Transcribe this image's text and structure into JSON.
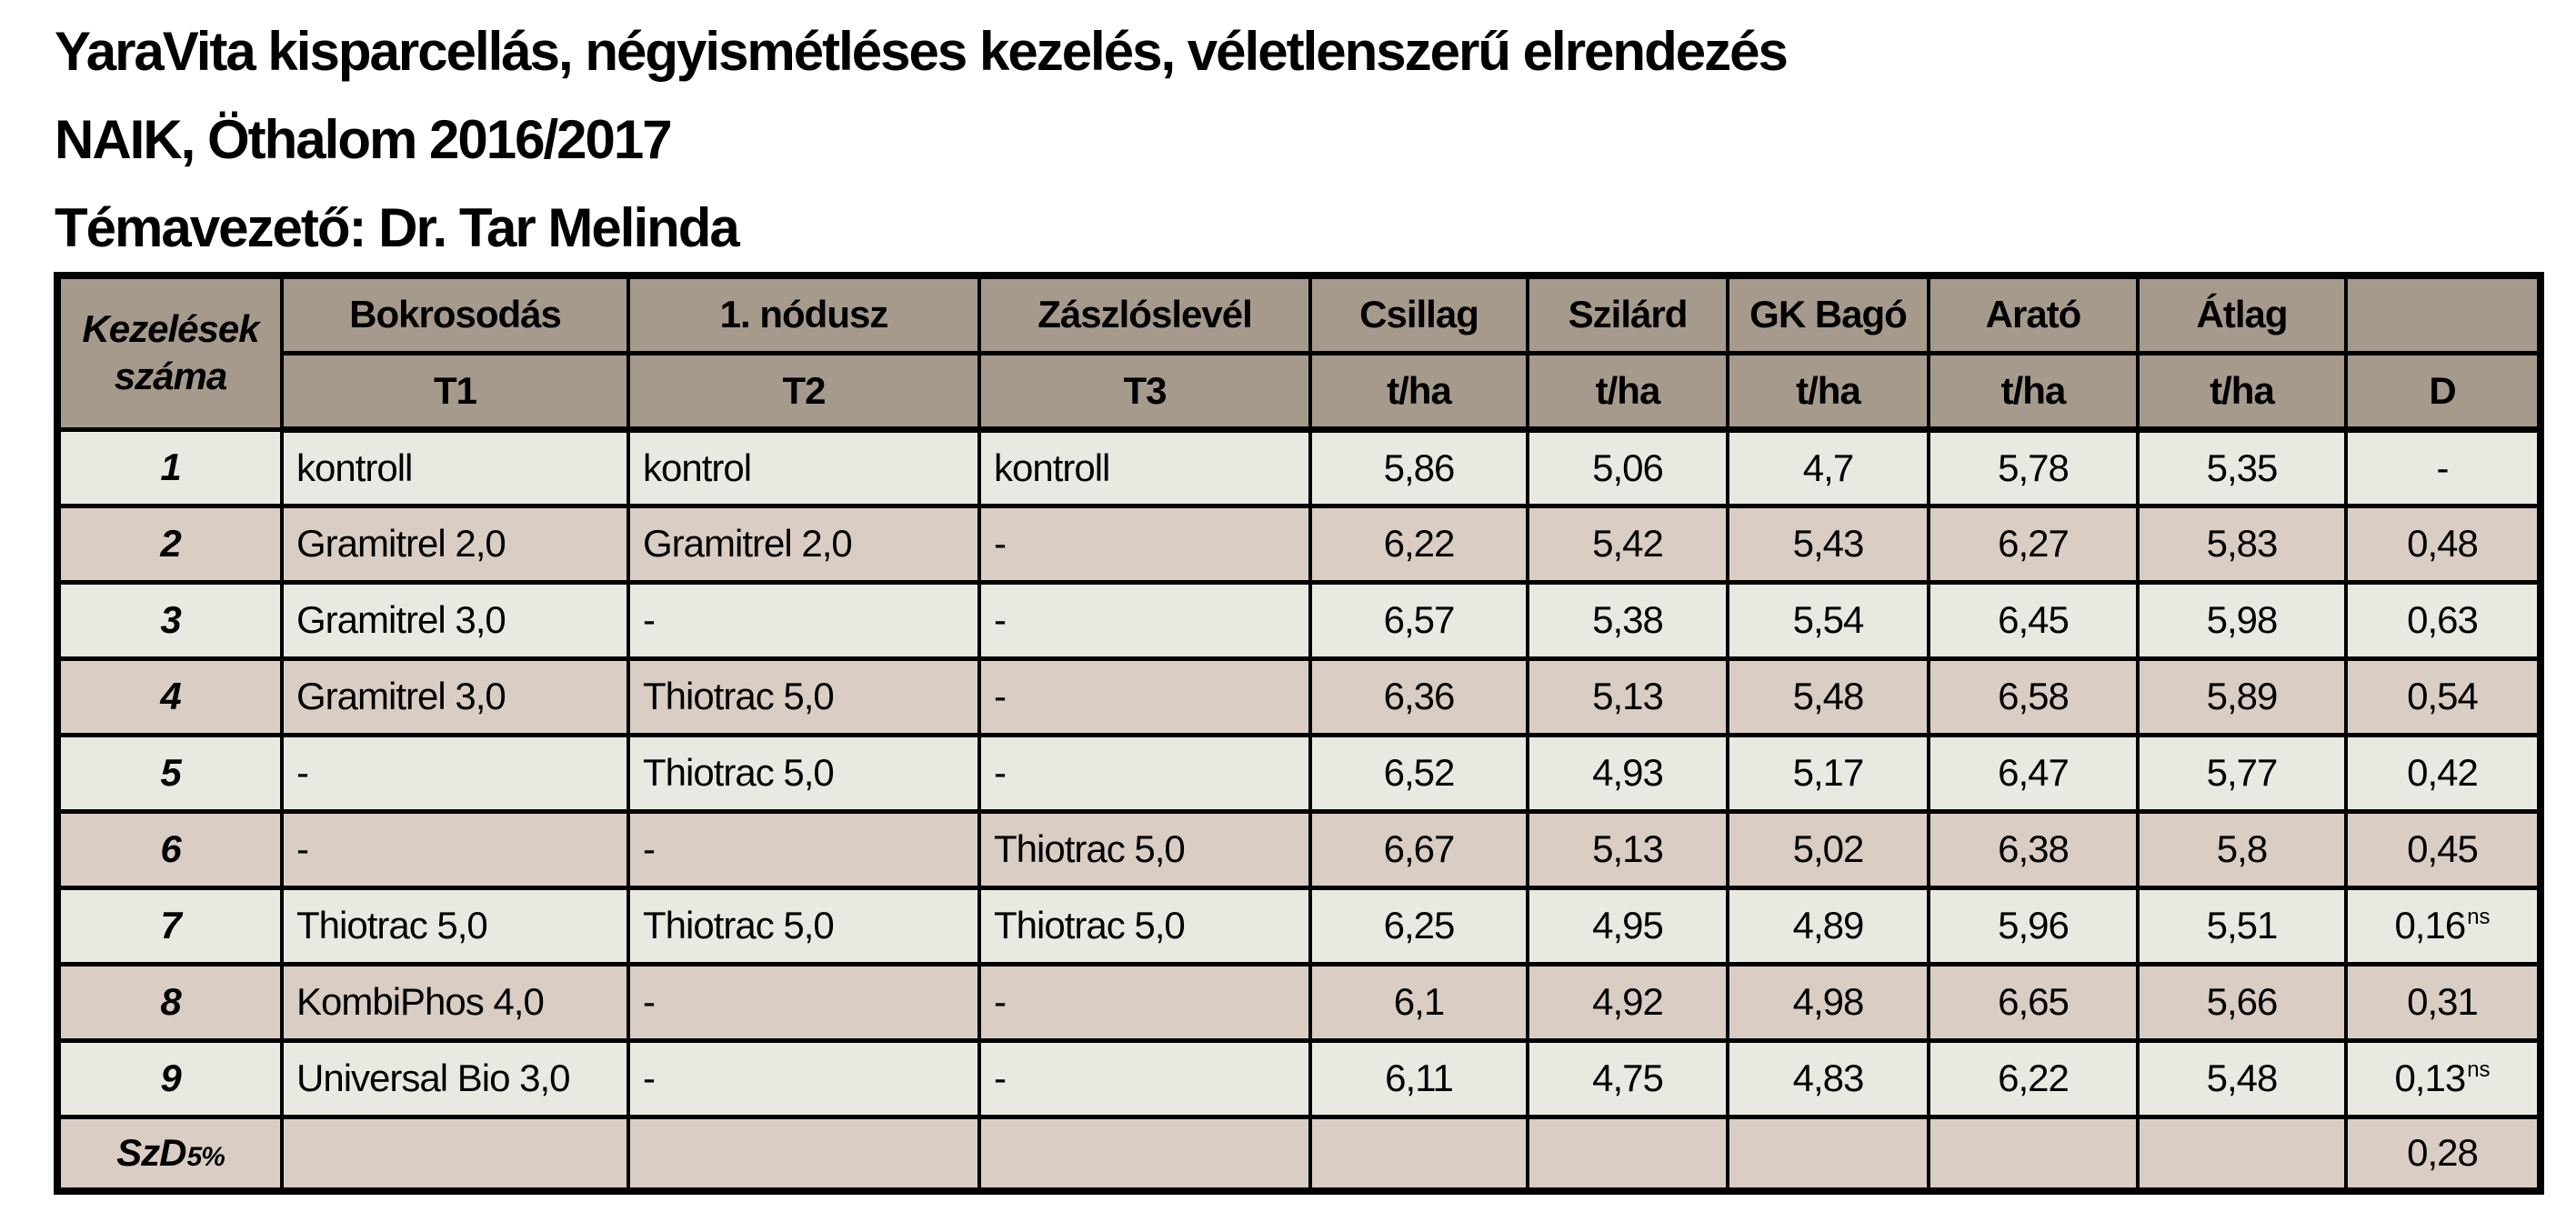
{
  "page": {
    "title_lines": [
      "YaraVita kisparcellás, négyismétléses kezelés, véletlenszerű elrendezés",
      "NAIK, Öthalom 2016/2017",
      "Témavezető: Dr. Tar Melinda"
    ]
  },
  "colors": {
    "header_bg": "#a69a8d",
    "row_light_bg": "#e9e9e1",
    "row_dark_bg": "#d9cdc4",
    "border": "#000000",
    "text": "#000000"
  },
  "table": {
    "corner_header": {
      "line1": "Kezelések",
      "line2": "száma"
    },
    "timing_columns": [
      {
        "label": "Bokrosodás",
        "code": "T1"
      },
      {
        "label": "1. nódusz",
        "code": "T2"
      },
      {
        "label": "Zászlóslevél",
        "code": "T3"
      }
    ],
    "variety_columns": [
      {
        "label": "Csillag",
        "unit": "t/ha"
      },
      {
        "label": "Szilárd",
        "unit": "t/ha"
      },
      {
        "label": "GK Bagó",
        "unit": "t/ha"
      },
      {
        "label": "Arató",
        "unit": "t/ha"
      },
      {
        "label": "Átlag",
        "unit": "t/ha"
      },
      {
        "label": "",
        "unit": "D"
      }
    ],
    "rows": [
      {
        "num": "1",
        "t1": "kontroll",
        "t2": "kontrol",
        "t3": "kontroll",
        "values": [
          "5,86",
          "5,06",
          "4,7",
          "5,78",
          "5,35"
        ],
        "d": "-",
        "d_sup": ""
      },
      {
        "num": "2",
        "t1": "Gramitrel 2,0",
        "t2": "Gramitrel 2,0",
        "t3": "-",
        "values": [
          "6,22",
          "5,42",
          "5,43",
          "6,27",
          "5,83"
        ],
        "d": "0,48",
        "d_sup": ""
      },
      {
        "num": "3",
        "t1": "Gramitrel 3,0",
        "t2": "-",
        "t3": "-",
        "values": [
          "6,57",
          "5,38",
          "5,54",
          "6,45",
          "5,98"
        ],
        "d": "0,63",
        "d_sup": ""
      },
      {
        "num": "4",
        "t1": "Gramitrel 3,0",
        "t2": "Thiotrac 5,0",
        "t3": "-",
        "values": [
          "6,36",
          "5,13",
          "5,48",
          "6,58",
          "5,89"
        ],
        "d": "0,54",
        "d_sup": ""
      },
      {
        "num": "5",
        "t1": "-",
        "t2": "Thiotrac 5,0",
        "t3": "-",
        "values": [
          "6,52",
          "4,93",
          "5,17",
          "6,47",
          "5,77"
        ],
        "d": "0,42",
        "d_sup": ""
      },
      {
        "num": "6",
        "t1": "-",
        "t2": "-",
        "t3": "Thiotrac 5,0",
        "values": [
          "6,67",
          "5,13",
          "5,02",
          "6,38",
          "5,8"
        ],
        "d": "0,45",
        "d_sup": ""
      },
      {
        "num": "7",
        "t1": "Thiotrac 5,0",
        "t2": "Thiotrac 5,0",
        "t3": "Thiotrac 5,0",
        "values": [
          "6,25",
          "4,95",
          "4,89",
          "5,96",
          "5,51"
        ],
        "d": "0,16",
        "d_sup": "ns"
      },
      {
        "num": "8",
        "t1": "KombiPhos 4,0",
        "t2": "-",
        "t3": "-",
        "values": [
          "6,1",
          "4,92",
          "4,98",
          "6,65",
          "5,66"
        ],
        "d": "0,31",
        "d_sup": ""
      },
      {
        "num": "9",
        "t1": "Universal Bio 3,0",
        "t2": "-",
        "t3": "-",
        "values": [
          "6,11",
          "4,75",
          "4,83",
          "6,22",
          "5,48"
        ],
        "d": "0,13",
        "d_sup": "ns"
      }
    ],
    "footer": {
      "label": "SzD",
      "label_sub": "5%",
      "d": "0,28"
    }
  }
}
